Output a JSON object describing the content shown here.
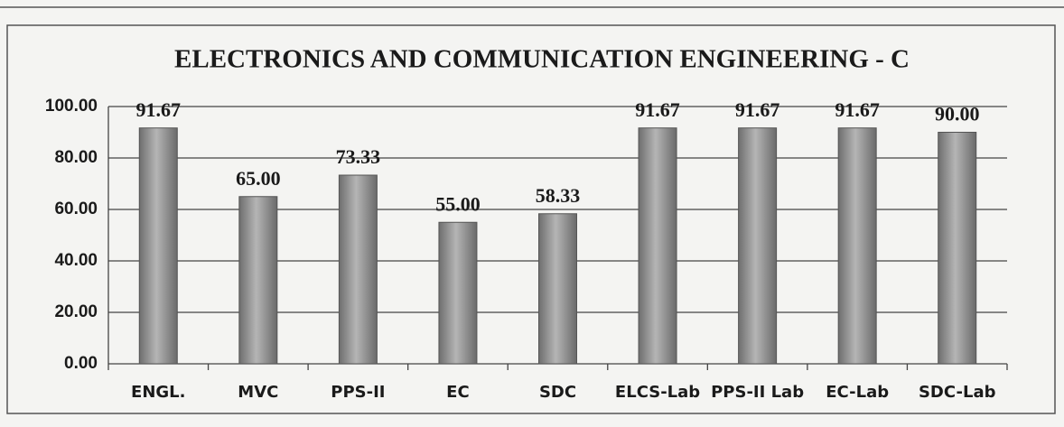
{
  "chart_data": {
    "type": "bar",
    "title": "ELECTRONICS AND COMMUNICATION ENGINEERING - C",
    "categories": [
      "ENGL.",
      "MVC",
      "PPS-II",
      "EC",
      "SDC",
      "ELCS-Lab",
      "PPS-II Lab",
      "EC-Lab",
      "SDC-Lab"
    ],
    "values": [
      91.67,
      65,
      73.33,
      55,
      58.33,
      91.67,
      91.67,
      91.67,
      90
    ],
    "value_labels": [
      "91.67",
      "65.00",
      "73.33",
      "55.00",
      "58.33",
      "91.67",
      "91.67",
      "91.67",
      "90.00"
    ],
    "color": "#8a8a8a",
    "ylim": [
      0,
      100
    ],
    "yticks": [
      {
        "value": 0,
        "label": "0.00"
      },
      {
        "value": 20,
        "label": "20.00"
      },
      {
        "value": 40,
        "label": "40.00"
      },
      {
        "value": 60,
        "label": "60.00"
      },
      {
        "value": 80,
        "label": "80.00"
      },
      {
        "value": 100,
        "label": "100.00"
      }
    ],
    "grid": true
  }
}
